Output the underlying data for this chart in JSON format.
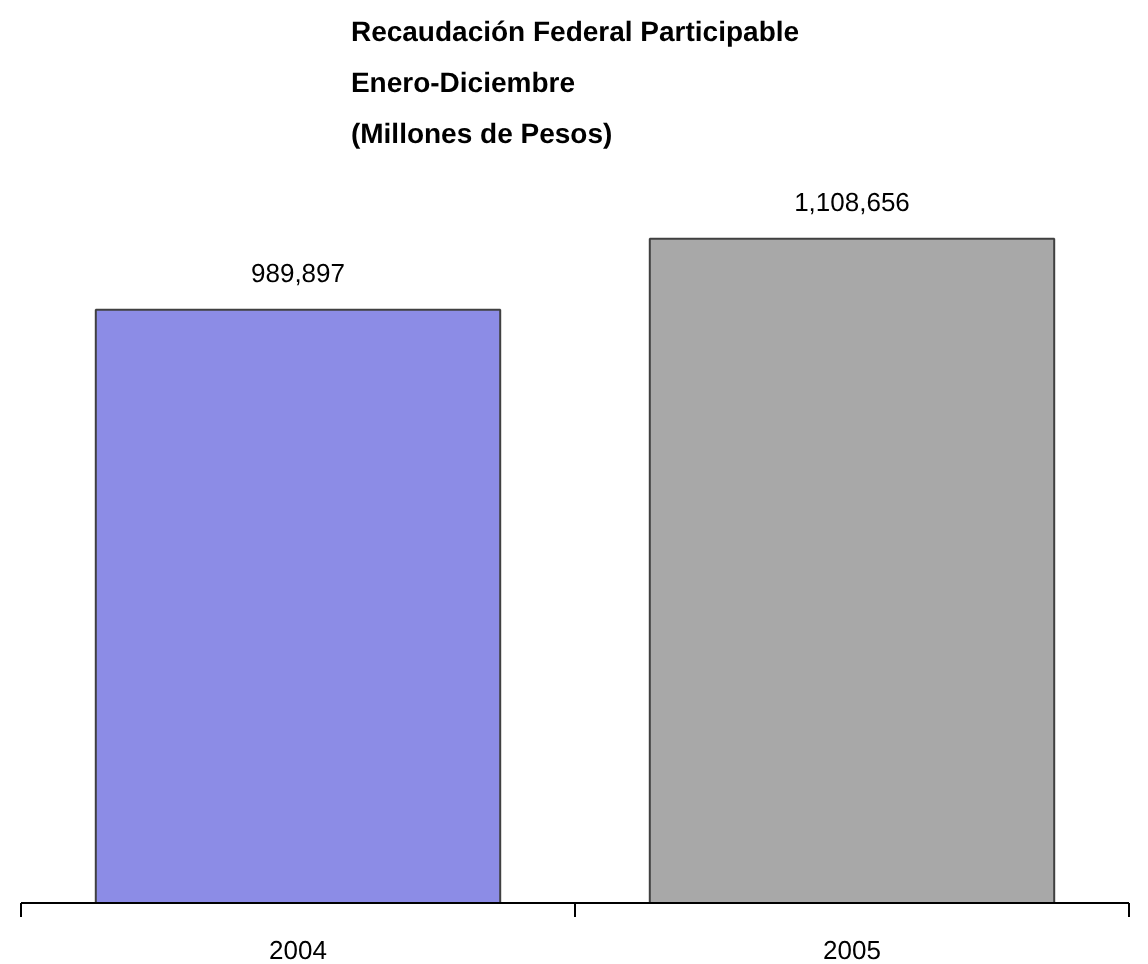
{
  "chart_data": {
    "type": "bar",
    "title": "Recaudación Federal Participable\nEnero-Diciembre\n(Millones de Pesos)",
    "categories": [
      "2004",
      "2005"
    ],
    "values": [
      989897,
      1108656
    ],
    "colors": [
      "#8c8ce6",
      "#a8a8a8"
    ],
    "value_labels": [
      "989,897",
      "1,108,656"
    ]
  }
}
